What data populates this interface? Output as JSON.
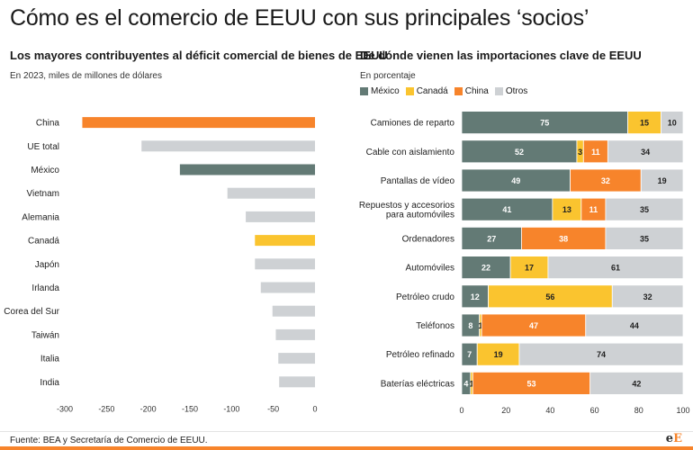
{
  "title": "Cómo es el comercio de EEUU con sus principales ‘socios’",
  "colors": {
    "mexico": "#637a75",
    "canada": "#fac42f",
    "china": "#f7842b",
    "otros": "#ced1d4",
    "accent": "#f7842b"
  },
  "chart_data": [
    {
      "type": "bar",
      "orientation": "horizontal",
      "title": "Los mayores contribuyentes al déficit comercial de bienes de EEUU",
      "subtitle": "En 2023, miles de millones de dólares",
      "categories": [
        "China",
        "UE total",
        "México",
        "Vietnam",
        "Alemania",
        "Canadá",
        "Japón",
        "Irlanda",
        "Corea del Sur",
        "Taiwán",
        "Italia",
        "India"
      ],
      "values": [
        -279,
        -208,
        -162,
        -105,
        -83,
        -72,
        -72,
        -65,
        -51,
        -47,
        -44,
        -43
      ],
      "bar_colors": [
        "china",
        "otros",
        "mexico",
        "otros",
        "otros",
        "canada",
        "otros",
        "otros",
        "otros",
        "otros",
        "otros",
        "otros"
      ],
      "xlim": [
        -300,
        0
      ],
      "xticks": [
        "-300",
        "-250",
        "-200",
        "-150",
        "-100",
        "-50",
        "0"
      ],
      "tick_values": [
        -300,
        -250,
        -200,
        -150,
        -100,
        -50,
        0
      ]
    },
    {
      "type": "bar",
      "orientation": "horizontal",
      "stacked": true,
      "title": "De dónde vienen las importaciones clave de EEUU",
      "subtitle": "En porcentaje",
      "categories": [
        "Camiones de reparto",
        "Cable con aislamiento",
        "Pantallas de vídeo",
        "Repuestos y accesorios para automóviles",
        "Ordenadores",
        "Automóviles",
        "Petróleo crudo",
        "Teléfonos",
        "Petróleo refinado",
        "Baterías eléctricas"
      ],
      "category_lines": [
        [
          "Camiones de reparto"
        ],
        [
          "Cable con aislamiento"
        ],
        [
          "Pantallas de vídeo"
        ],
        [
          "Repuestos y accesorios",
          "para automóviles"
        ],
        [
          "Ordenadores"
        ],
        [
          "Automóviles"
        ],
        [
          "Petróleo crudo"
        ],
        [
          "Teléfonos"
        ],
        [
          "Petróleo refinado"
        ],
        [
          "Baterías eléctricas"
        ]
      ],
      "series": [
        {
          "name": "México",
          "key": "mexico",
          "values": [
            75,
            52,
            49,
            41,
            27,
            22,
            12,
            8,
            7,
            4
          ]
        },
        {
          "name": "Canadá",
          "key": "canada",
          "values": [
            15,
            3,
            0,
            13,
            0,
            17,
            56,
            1,
            19,
            1
          ]
        },
        {
          "name": "China",
          "key": "china",
          "values": [
            0,
            11,
            32,
            11,
            38,
            0,
            0,
            47,
            0,
            53
          ]
        },
        {
          "name": "Otros",
          "key": "otros",
          "values": [
            10,
            34,
            19,
            35,
            35,
            61,
            32,
            44,
            74,
            42
          ]
        }
      ],
      "xlim": [
        0,
        100
      ],
      "xticks": [
        "0",
        "20",
        "40",
        "60",
        "80",
        "100"
      ],
      "tick_values": [
        0,
        20,
        40,
        60,
        80,
        100
      ]
    }
  ],
  "footer": {
    "source": "Fuente: BEA y Secretaría de Comercio de EEUU.",
    "logo_main": "e",
    "logo_accent": "E"
  }
}
